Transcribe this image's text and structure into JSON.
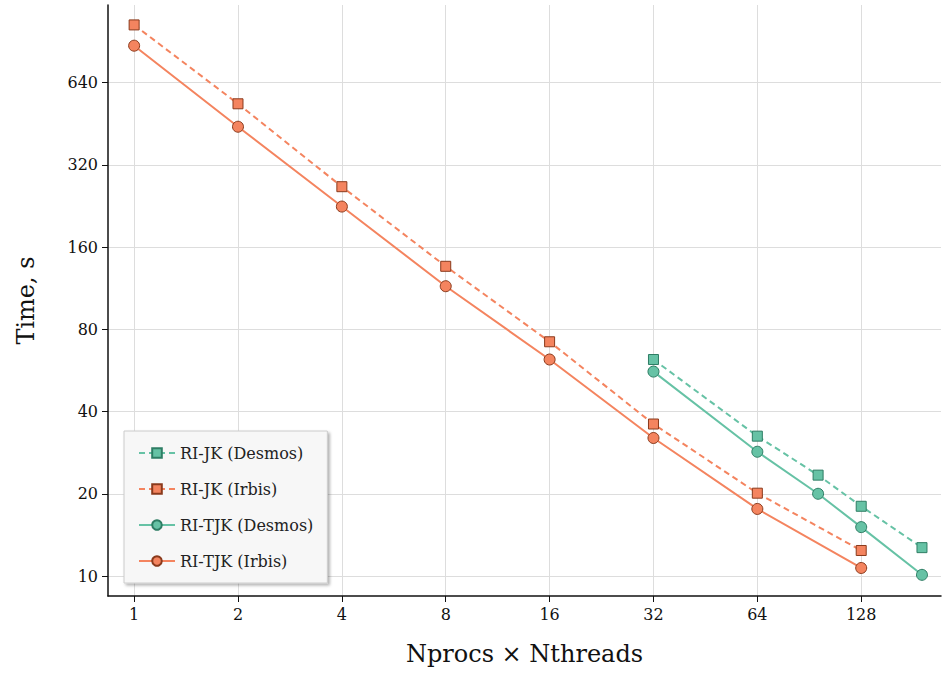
{
  "chart_data": {
    "type": "line",
    "x_label": "Nprocs × Nthreads",
    "y_label": "Time, s",
    "log": true,
    "grid": true,
    "legend": "lower left",
    "xlim": [
      0.84,
      218
    ],
    "xticks": [
      1,
      2,
      4,
      8,
      16,
      32,
      64,
      128
    ],
    "ylim": [
      8.45,
      1230
    ],
    "yticks": [
      10,
      20,
      40,
      80,
      160,
      320,
      640
    ],
    "series": [
      {
        "name": "RI-JK (Desmos)",
        "color": "#66c2a5",
        "marker": "square",
        "line_style": "dashed",
        "x": [
          32,
          64,
          96,
          128,
          192
        ],
        "values": [
          62,
          32.5,
          23.4,
          18,
          12.7
        ]
      },
      {
        "name": "RI-JK (Irbis)",
        "color": "#f4845f",
        "marker": "square",
        "line_style": "dashed",
        "x": [
          1,
          2,
          4,
          8,
          16,
          32,
          64,
          128
        ],
        "values": [
          1040,
          535,
          266,
          136,
          72,
          36,
          20.1,
          12.4
        ]
      },
      {
        "name": "RI-TJK (Desmos)",
        "color": "#66c2a5",
        "marker": "circle",
        "line_style": "solid",
        "x": [
          32,
          64,
          96,
          128,
          192
        ],
        "values": [
          56,
          28.5,
          20,
          15.1,
          10.1
        ]
      },
      {
        "name": "RI-TJK (Irbis)",
        "color": "#f4845f",
        "marker": "circle",
        "line_style": "solid",
        "x": [
          1,
          2,
          4,
          8,
          16,
          32,
          64,
          128
        ],
        "values": [
          873,
          441,
          225,
          115,
          62,
          32,
          17.6,
          10.7
        ]
      }
    ]
  }
}
